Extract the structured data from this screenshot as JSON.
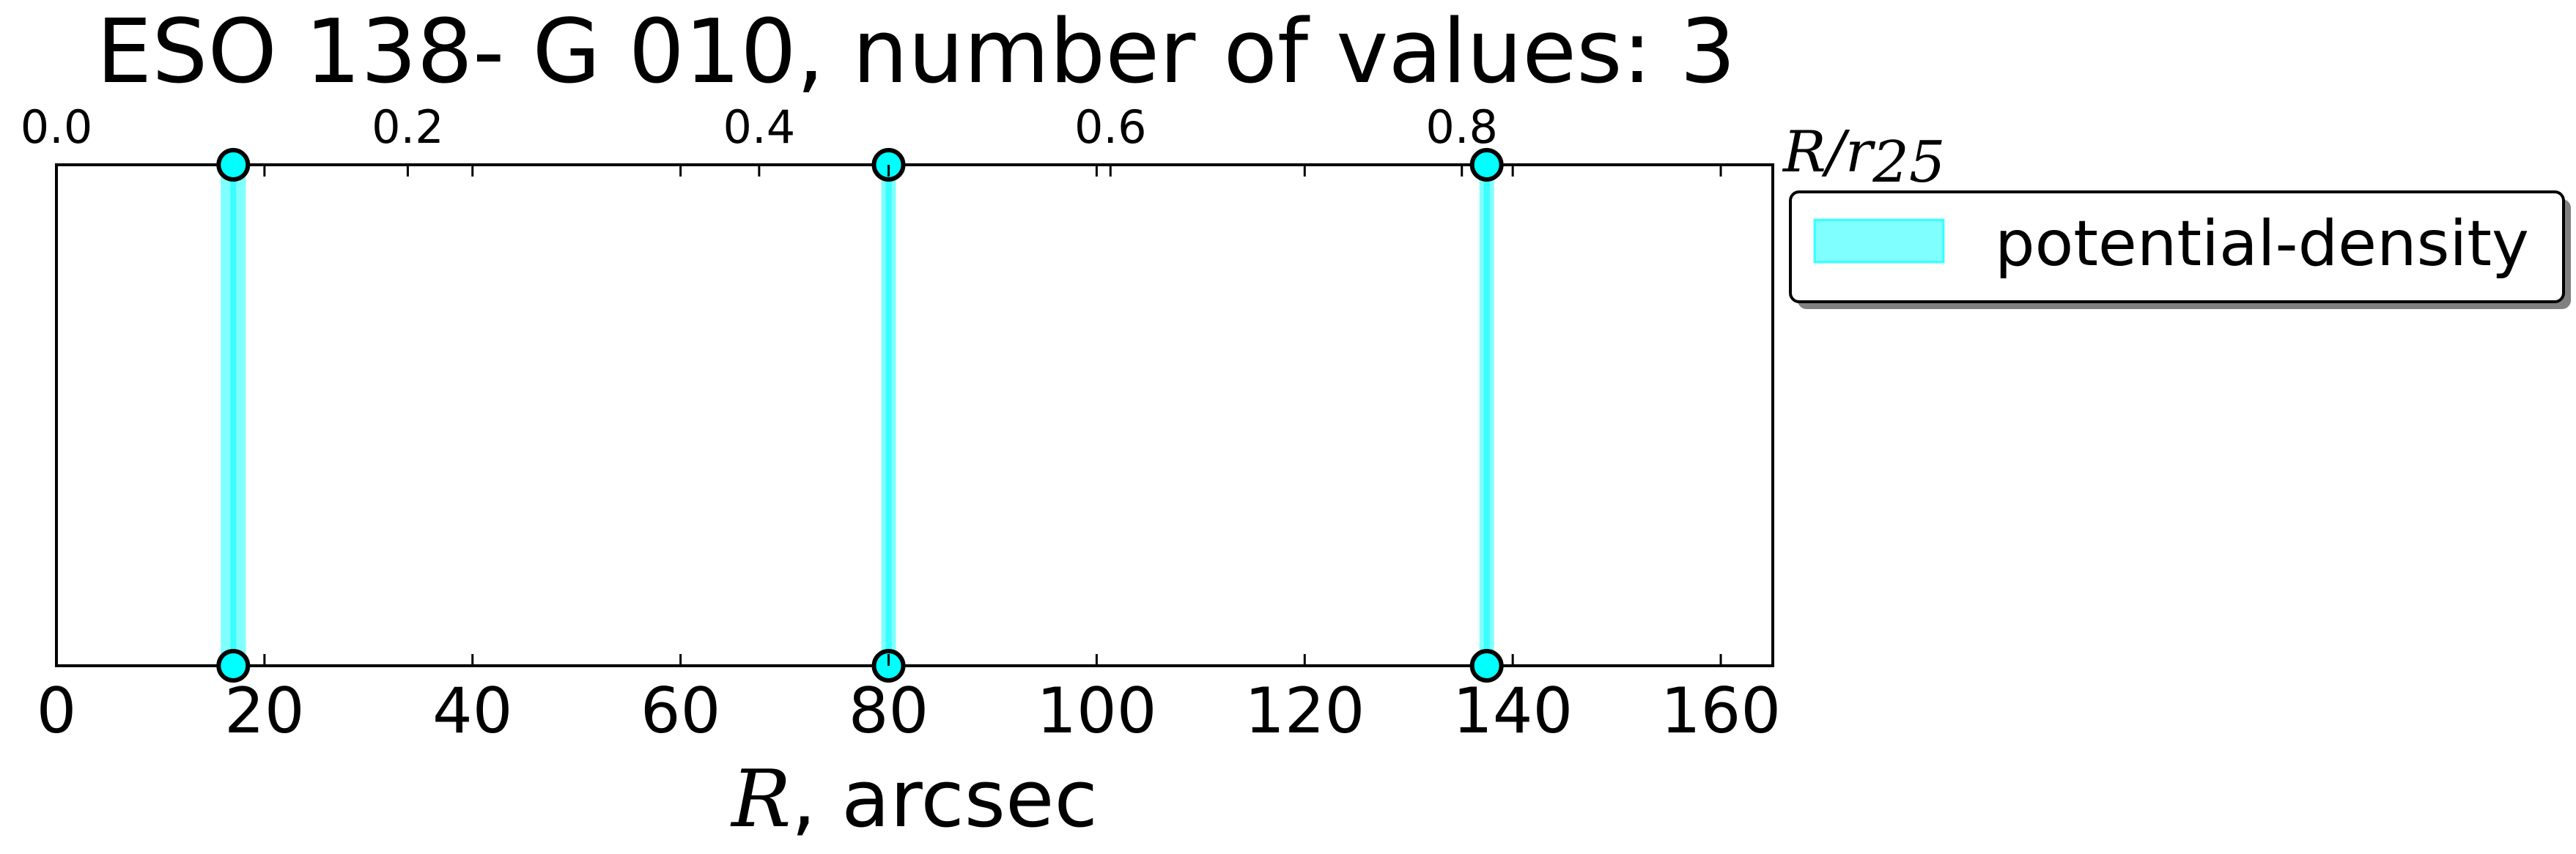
{
  "chart_data": {
    "type": "scatter",
    "title": "ESO 138- G 010, number of values: 3",
    "xlabel": "arcsec",
    "xlabel_symbol": "R",
    "xlim": [
      0,
      165
    ],
    "x_ticks": [
      0,
      20,
      40,
      60,
      80,
      100,
      120,
      140,
      160
    ],
    "top_axis": {
      "label": "R/r25",
      "label_main": "R/r",
      "label_sub": "25",
      "ticks": [
        0.0,
        0.2,
        0.4,
        0.6,
        0.8
      ],
      "tick_labels": [
        "0.0",
        "0.2",
        "0.4",
        "0.6",
        "0.8"
      ],
      "lim": [
        0.0,
        0.977
      ]
    },
    "grid": false,
    "legend_placement": "outside-right-top",
    "series": [
      {
        "name": "potential-density",
        "color": "#00ffff",
        "x": [
          17.0,
          80.0,
          137.5
        ],
        "band_halfwidth": [
          1.2,
          0.7,
          0.7
        ]
      }
    ]
  }
}
